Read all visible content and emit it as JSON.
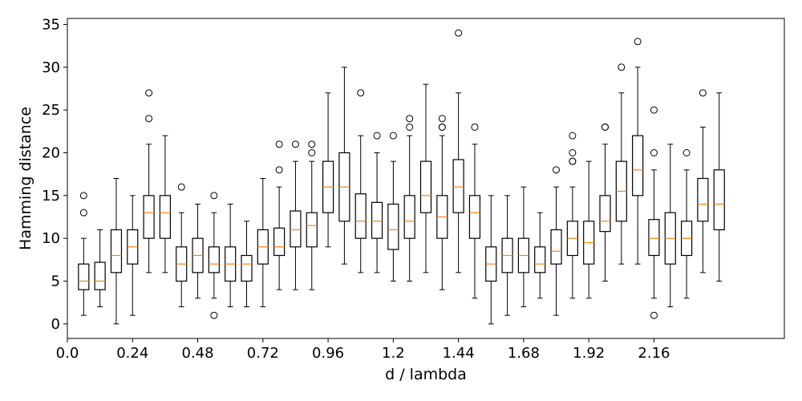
{
  "chart_data": {
    "type": "box",
    "title": "",
    "xlabel": "d / lambda",
    "ylabel": "Hamming distance",
    "xlim": [
      0.0,
      2.64
    ],
    "ylim": [
      -1.7,
      35.7
    ],
    "x_ticks": [
      0.0,
      0.24,
      0.48,
      0.72,
      0.96,
      1.2,
      1.44,
      1.68,
      1.92,
      2.16
    ],
    "x_tick_labels": [
      "0.0",
      "0.24",
      "0.48",
      "0.72",
      "0.96",
      "1.2",
      "1.44",
      "1.68",
      "1.92",
      "2.16"
    ],
    "y_ticks": [
      0,
      5,
      10,
      15,
      20,
      25,
      30,
      35
    ],
    "y_tick_labels": [
      "0",
      "5",
      "10",
      "15",
      "20",
      "25",
      "30",
      "35"
    ],
    "grid": false,
    "colors": {
      "box": "#000000",
      "median": "#ff7f0e",
      "flier": "#000000"
    },
    "boxes": [
      {
        "x": 0.06,
        "whislo": 1,
        "q1": 4,
        "med": 5,
        "q3": 7,
        "whishi": 10,
        "fliers": [
          13,
          15
        ]
      },
      {
        "x": 0.12,
        "whislo": 2,
        "q1": 4,
        "med": 5,
        "q3": 7.2,
        "whishi": 11,
        "fliers": []
      },
      {
        "x": 0.18,
        "whislo": 0,
        "q1": 6,
        "med": 8,
        "q3": 11,
        "whishi": 17,
        "fliers": []
      },
      {
        "x": 0.24,
        "whislo": 1,
        "q1": 7,
        "med": 9,
        "q3": 11,
        "whishi": 15,
        "fliers": []
      },
      {
        "x": 0.3,
        "whislo": 6,
        "q1": 10,
        "med": 13,
        "q3": 15,
        "whishi": 21,
        "fliers": [
          24,
          27
        ]
      },
      {
        "x": 0.36,
        "whislo": 6,
        "q1": 10,
        "med": 13,
        "q3": 15,
        "whishi": 22,
        "fliers": []
      },
      {
        "x": 0.42,
        "whislo": 2,
        "q1": 5,
        "med": 7,
        "q3": 9,
        "whishi": 13,
        "fliers": [
          16
        ]
      },
      {
        "x": 0.48,
        "whislo": 3,
        "q1": 6,
        "med": 8,
        "q3": 10,
        "whishi": 14,
        "fliers": []
      },
      {
        "x": 0.54,
        "whislo": 3,
        "q1": 6,
        "med": 7,
        "q3": 9,
        "whishi": 13,
        "fliers": [
          1,
          15
        ]
      },
      {
        "x": 0.6,
        "whislo": 2,
        "q1": 5,
        "med": 7,
        "q3": 9,
        "whishi": 14,
        "fliers": []
      },
      {
        "x": 0.66,
        "whislo": 2,
        "q1": 5,
        "med": 7,
        "q3": 8,
        "whishi": 12,
        "fliers": []
      },
      {
        "x": 0.72,
        "whislo": 2,
        "q1": 7,
        "med": 9,
        "q3": 11,
        "whishi": 17,
        "fliers": []
      },
      {
        "x": 0.78,
        "whislo": 4,
        "q1": 8,
        "med": 9,
        "q3": 11.2,
        "whishi": 16,
        "fliers": [
          18,
          21
        ]
      },
      {
        "x": 0.84,
        "whislo": 4,
        "q1": 9,
        "med": 11,
        "q3": 13.2,
        "whishi": 19,
        "fliers": [
          21
        ]
      },
      {
        "x": 0.9,
        "whislo": 4,
        "q1": 9,
        "med": 11.5,
        "q3": 13,
        "whishi": 19,
        "fliers": [
          20,
          21
        ]
      },
      {
        "x": 0.96,
        "whislo": 9,
        "q1": 13,
        "med": 16,
        "q3": 19,
        "whishi": 27,
        "fliers": []
      },
      {
        "x": 1.02,
        "whislo": 7,
        "q1": 12,
        "med": 16,
        "q3": 20,
        "whishi": 30,
        "fliers": []
      },
      {
        "x": 1.08,
        "whislo": 6,
        "q1": 10,
        "med": 12,
        "q3": 15.2,
        "whishi": 22,
        "fliers": [
          27
        ]
      },
      {
        "x": 1.14,
        "whislo": 6,
        "q1": 10,
        "med": 12,
        "q3": 14.2,
        "whishi": 20,
        "fliers": [
          22
        ]
      },
      {
        "x": 1.2,
        "whislo": 5,
        "q1": 8.7,
        "med": 11,
        "q3": 14,
        "whishi": 19,
        "fliers": [
          22
        ]
      },
      {
        "x": 1.26,
        "whislo": 5,
        "q1": 10,
        "med": 12,
        "q3": 15,
        "whishi": 22,
        "fliers": [
          23,
          24
        ]
      },
      {
        "x": 1.32,
        "whislo": 6,
        "q1": 13,
        "med": 15,
        "q3": 19,
        "whishi": 28,
        "fliers": []
      },
      {
        "x": 1.38,
        "whislo": 4,
        "q1": 10,
        "med": 12.5,
        "q3": 15,
        "whishi": 22,
        "fliers": [
          23,
          23,
          24
        ]
      },
      {
        "x": 1.44,
        "whislo": 6,
        "q1": 13,
        "med": 16,
        "q3": 19.2,
        "whishi": 27,
        "fliers": [
          34
        ]
      },
      {
        "x": 1.5,
        "whislo": 3,
        "q1": 10,
        "med": 13,
        "q3": 15,
        "whishi": 21,
        "fliers": [
          23
        ]
      },
      {
        "x": 1.56,
        "whislo": 0,
        "q1": 5,
        "med": 7,
        "q3": 9,
        "whishi": 15,
        "fliers": []
      },
      {
        "x": 1.62,
        "whislo": 1,
        "q1": 6,
        "med": 8,
        "q3": 10,
        "whishi": 15,
        "fliers": []
      },
      {
        "x": 1.68,
        "whislo": 2,
        "q1": 6,
        "med": 8,
        "q3": 10,
        "whishi": 16,
        "fliers": []
      },
      {
        "x": 1.74,
        "whislo": 3,
        "q1": 6,
        "med": 7,
        "q3": 9,
        "whishi": 13,
        "fliers": []
      },
      {
        "x": 1.8,
        "whislo": 1,
        "q1": 7,
        "med": 8.5,
        "q3": 11,
        "whishi": 16,
        "fliers": [
          18
        ]
      },
      {
        "x": 1.86,
        "whislo": 3,
        "q1": 8,
        "med": 10,
        "q3": 12,
        "whishi": 16,
        "fliers": [
          19,
          19,
          20,
          22
        ]
      },
      {
        "x": 1.92,
        "whislo": 3,
        "q1": 7,
        "med": 9.5,
        "q3": 12,
        "whishi": 19,
        "fliers": []
      },
      {
        "x": 1.98,
        "whislo": 5,
        "q1": 10.8,
        "med": 12,
        "q3": 15,
        "whishi": 21,
        "fliers": [
          23,
          23
        ]
      },
      {
        "x": 2.04,
        "whislo": 7,
        "q1": 12,
        "med": 15.5,
        "q3": 19,
        "whishi": 27,
        "fliers": [
          30
        ]
      },
      {
        "x": 2.1,
        "whislo": 7,
        "q1": 15,
        "med": 18,
        "q3": 22,
        "whishi": 30,
        "fliers": [
          33
        ]
      },
      {
        "x": 2.16,
        "whislo": 3,
        "q1": 8,
        "med": 10,
        "q3": 12.2,
        "whishi": 18,
        "fliers": [
          1,
          20,
          25
        ]
      },
      {
        "x": 2.22,
        "whislo": 2,
        "q1": 7,
        "med": 10,
        "q3": 13,
        "whishi": 21,
        "fliers": []
      },
      {
        "x": 2.28,
        "whislo": 3,
        "q1": 8,
        "med": 10,
        "q3": 12,
        "whishi": 18,
        "fliers": [
          20
        ]
      },
      {
        "x": 2.34,
        "whislo": 6,
        "q1": 12,
        "med": 14,
        "q3": 17,
        "whishi": 23,
        "fliers": [
          27
        ]
      },
      {
        "x": 2.4,
        "whislo": 5,
        "q1": 11,
        "med": 14,
        "q3": 18,
        "whishi": 27,
        "fliers": []
      }
    ]
  }
}
